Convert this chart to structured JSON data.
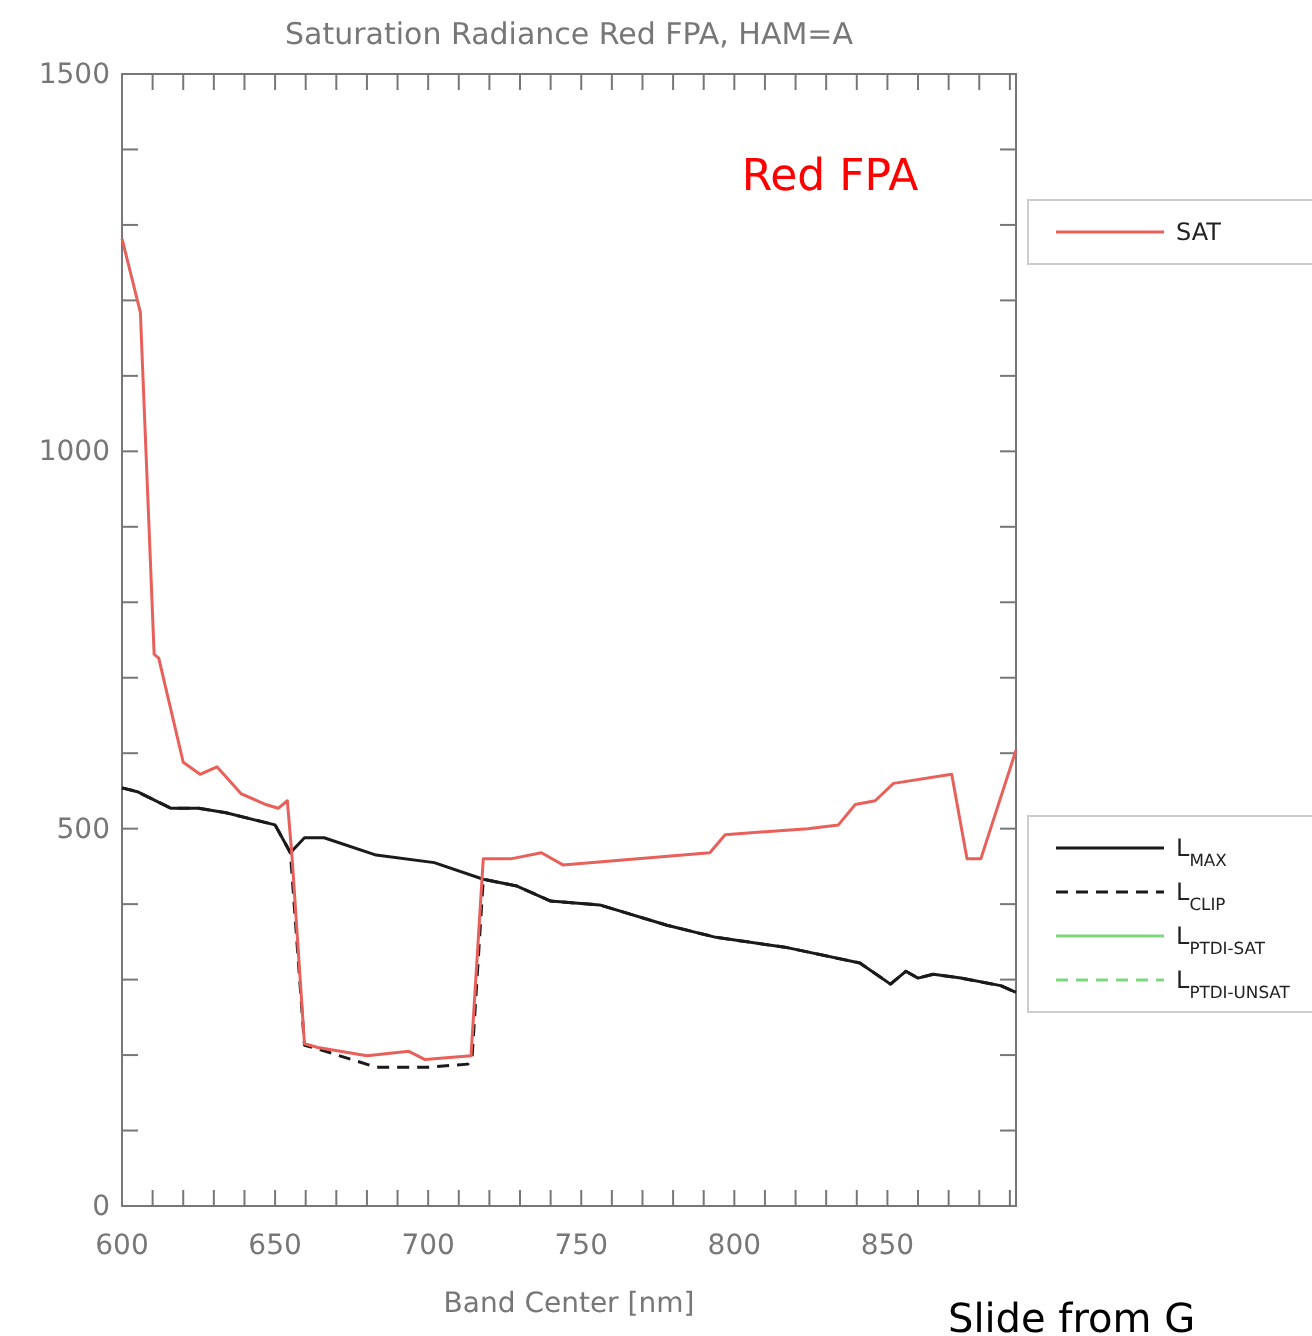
{
  "chart_data": {
    "type": "line",
    "title": "Saturation Radiance Red FPA, HAM=A",
    "xlabel": "Band Center [nm]",
    "xlim": [
      600,
      892
    ],
    "xticks": [
      600,
      {
        "value": 610,
        "label": null
      },
      {
        "value": 620,
        "label": null
      },
      {
        "value": 630,
        "label": null
      },
      {
        "value": 640,
        "label": null
      },
      650,
      {
        "value": 660,
        "label": null
      },
      {
        "value": 670,
        "label": null
      },
      {
        "value": 680,
        "label": null
      },
      {
        "value": 690,
        "label": null
      },
      700,
      {
        "value": 710,
        "label": null
      },
      {
        "value": 720,
        "label": null
      },
      {
        "value": 730,
        "label": null
      },
      {
        "value": 740,
        "label": null
      },
      750,
      {
        "value": 760,
        "label": null
      },
      {
        "value": 770,
        "label": null
      },
      {
        "value": 780,
        "label": null
      },
      {
        "value": 790,
        "label": null
      },
      800,
      {
        "value": 810,
        "label": null
      },
      {
        "value": 820,
        "label": null
      },
      {
        "value": 830,
        "label": null
      },
      {
        "value": 840,
        "label": null
      },
      850,
      {
        "value": 860,
        "label": null
      },
      {
        "value": 870,
        "label": null
      },
      {
        "value": 880,
        "label": null
      },
      {
        "value": 890,
        "label": null
      }
    ],
    "ylim": [
      0,
      1500
    ],
    "yticks": [
      0,
      {
        "value": 100,
        "label": null
      },
      {
        "value": 200,
        "label": null
      },
      {
        "value": 300,
        "label": null
      },
      {
        "value": 400,
        "label": null
      },
      500,
      {
        "value": 600,
        "label": null
      },
      {
        "value": 700,
        "label": null
      },
      {
        "value": 800,
        "label": null
      },
      {
        "value": 900,
        "label": null
      },
      1000,
      {
        "value": 1100,
        "label": null
      },
      {
        "value": 1200,
        "label": null
      },
      {
        "value": 1300,
        "label": null
      },
      {
        "value": 1400,
        "label": null
      },
      1500
    ],
    "legend": "right",
    "annotations": [
      "Red FPA",
      "Slide from G"
    ],
    "series": [
      {
        "name": "SAT",
        "color": "#e8605a",
        "line_style": "solid",
        "x": [
          600,
          606,
          610.5,
          612,
          620,
          625.5,
          631,
          639,
          647,
          651,
          654,
          655.5,
          659.6,
          664,
          680,
          693.7,
          699,
          714,
          718,
          727,
          737,
          744,
          792,
          797,
          824,
          834,
          839.5,
          846,
          852,
          871,
          876,
          880.5,
          892
        ],
        "values": [
          1282,
          1184,
          731,
          726,
          588,
          572,
          582,
          546,
          532,
          527,
          537,
          465,
          215,
          210,
          199,
          205,
          194,
          199,
          460,
          460,
          468,
          452,
          468,
          492,
          500,
          505,
          532,
          537,
          560,
          572,
          460,
          460,
          604
        ]
      },
      {
        "name": "L$_{MAX}$",
        "color": "#1a1a1a",
        "line_style": "solid",
        "x": [
          600,
          605,
          616,
          625,
          634,
          650,
          655,
          659.6,
          666,
          683,
          702,
          718,
          729,
          740,
          756,
          778,
          794,
          816.5,
          841,
          851,
          856,
          860,
          865,
          874,
          887,
          892
        ],
        "values": [
          554,
          549,
          527,
          527,
          521,
          505,
          468,
          488,
          488,
          465,
          455,
          433,
          424,
          404,
          399,
          372,
          356,
          343,
          322,
          294,
          311,
          302,
          307,
          302,
          292,
          283
        ]
      },
      {
        "name": "L$_{CLIP}$",
        "color": "#1a1a1a",
        "line_style": "dashed",
        "x": [
          600,
          605,
          616,
          625,
          634,
          650,
          655,
          659.6,
          664,
          683,
          700,
          713,
          714.4,
          718,
          729,
          740,
          756,
          778,
          794,
          816.5,
          841,
          851,
          856,
          860,
          865,
          874,
          887,
          892
        ],
        "values": [
          554,
          549,
          527,
          527,
          521,
          505,
          468,
          213,
          208,
          184,
          184,
          188,
          200,
          433,
          424,
          404,
          399,
          372,
          356,
          343,
          322,
          294,
          311,
          302,
          307,
          302,
          292,
          283
        ]
      },
      {
        "name": "L$_{PTDI-SAT}$",
        "color": "#7dd87d",
        "line_style": "solid"
      },
      {
        "name": "L$_{PTDI-UNSAT}$",
        "color": "#7dd87d",
        "line_style": "dashed"
      }
    ]
  }
}
